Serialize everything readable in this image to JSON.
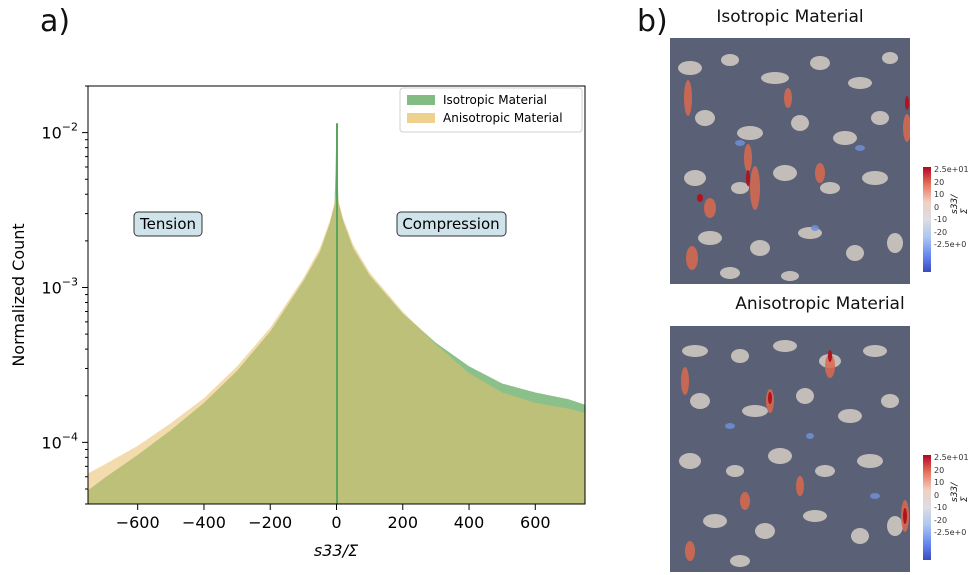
{
  "panel_a_label": "a)",
  "panel_b_label": "b)",
  "chart_data": {
    "type": "bar",
    "title": "",
    "xlabel": "s33/Σ",
    "ylabel": "Normalized Count",
    "xlim": [
      -750,
      750
    ],
    "ylim": [
      4e-05,
      0.02
    ],
    "yscale": "log",
    "xticks": [
      -600,
      -400,
      -200,
      0,
      200,
      400,
      600
    ],
    "xtick_labels": [
      "−600",
      "−400",
      "−200",
      "0",
      "200",
      "400",
      "600"
    ],
    "yticks": [
      0.0001,
      0.001,
      0.01
    ],
    "ytick_labels": [
      "10^-4",
      "10^-3",
      "10^-2"
    ],
    "legend_position": "top-right",
    "annotations": [
      "Tension",
      "Compression"
    ],
    "series": [
      {
        "name": "Isotropic Material",
        "color": "#5aa55a",
        "points": [
          [
            -750,
            4.9e-05
          ],
          [
            -700,
            5.9e-05
          ],
          [
            -600,
            8.3e-05
          ],
          [
            -500,
            0.00012
          ],
          [
            -400,
            0.00018
          ],
          [
            -300,
            0.00029
          ],
          [
            -200,
            0.00052
          ],
          [
            -100,
            0.0011
          ],
          [
            -50,
            0.0017
          ],
          [
            -20,
            0.0026
          ],
          [
            -5,
            0.0035
          ],
          [
            0,
            0.0115
          ],
          [
            5,
            0.0036
          ],
          [
            20,
            0.0027
          ],
          [
            50,
            0.0018
          ],
          [
            100,
            0.0012
          ],
          [
            200,
            0.00068
          ],
          [
            300,
            0.00044
          ],
          [
            400,
            0.00031
          ],
          [
            500,
            0.00024
          ],
          [
            600,
            0.00021
          ],
          [
            700,
            0.00019
          ],
          [
            750,
            0.000175
          ]
        ]
      },
      {
        "name": "Anisotropic Material",
        "color": "#e8c06a",
        "points": [
          [
            -750,
            6.3e-05
          ],
          [
            -700,
            7.2e-05
          ],
          [
            -600,
            9.5e-05
          ],
          [
            -500,
            0.000133
          ],
          [
            -400,
            0.000193
          ],
          [
            -300,
            0.00031
          ],
          [
            -200,
            0.00055
          ],
          [
            -100,
            0.00115
          ],
          [
            -50,
            0.0018
          ],
          [
            -20,
            0.0027
          ],
          [
            -5,
            0.0036
          ],
          [
            0,
            0.0042
          ],
          [
            5,
            0.0037
          ],
          [
            20,
            0.0028
          ],
          [
            50,
            0.0019
          ],
          [
            100,
            0.00125
          ],
          [
            200,
            0.0007
          ],
          [
            300,
            0.00043
          ],
          [
            400,
            0.00028
          ],
          [
            500,
            0.00021
          ],
          [
            600,
            0.00018
          ],
          [
            700,
            0.000165
          ],
          [
            750,
            0.000155
          ]
        ]
      }
    ]
  },
  "fields": {
    "top": {
      "title": "Isotropic Material",
      "colorbar_ticks": [
        "2.5e+01",
        "20",
        "10",
        "0",
        "-10",
        "-20",
        "-2.5e+0"
      ],
      "colorbar_label": "s33/Σ"
    },
    "bottom": {
      "title": "Anisotropic Material",
      "colorbar_ticks": [
        "2.5e+01",
        "20",
        "10",
        "0",
        "-10",
        "-20",
        "-2.5e+0"
      ],
      "colorbar_label": "s33/Σ"
    }
  }
}
